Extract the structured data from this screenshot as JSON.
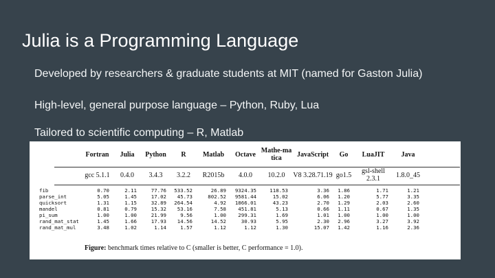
{
  "slide": {
    "title": "Julia is a Programming Language",
    "bullets": [
      "Developed by researchers & graduate students at MIT (named for Gaston Julia)",
      "High-level, general purpose language – Python, Ruby, Lua",
      "Tailored to scientific computing – R, Matlab"
    ]
  },
  "table": {
    "columns": [
      {
        "name": "Fortran",
        "version": "gcc 5.1.1"
      },
      {
        "name": "Julia",
        "version": "0.4.0"
      },
      {
        "name": "Python",
        "version": "3.4.3"
      },
      {
        "name": "R",
        "version": "3.2.2"
      },
      {
        "name": "Matlab",
        "version": "R2015b"
      },
      {
        "name": "Octave",
        "version": "4.0.0"
      },
      {
        "name": "Mathe-matica",
        "version": "10.2.0"
      },
      {
        "name": "JavaScript",
        "version": "V8 3.28.71.19"
      },
      {
        "name": "Go",
        "version": "go1.5"
      },
      {
        "name": "LuaJIT",
        "version": "gsl-shell 2.3.1"
      },
      {
        "name": "Java",
        "version": "1.8.0_45"
      }
    ],
    "rows": [
      {
        "name": "fib",
        "values": [
          "0.70",
          "2.11",
          "77.76",
          "533.52",
          "26.89",
          "9324.35",
          "118.53",
          "3.36",
          "1.86",
          "1.71",
          "1.21"
        ]
      },
      {
        "name": "parse_int",
        "values": [
          "5.05",
          "1.45",
          "17.02",
          "45.73",
          "802.52",
          "9581.44",
          "15.02",
          "6.06",
          "1.20",
          "5.77",
          "3.35"
        ]
      },
      {
        "name": "quicksort",
        "values": [
          "1.31",
          "1.15",
          "32.89",
          "264.54",
          "4.92",
          "1866.01",
          "43.23",
          "2.70",
          "1.29",
          "2.03",
          "2.60"
        ]
      },
      {
        "name": "mandel",
        "values": [
          "0.81",
          "0.79",
          "15.32",
          "53.16",
          "7.58",
          "451.81",
          "5.13",
          "0.66",
          "1.11",
          "0.67",
          "1.35"
        ]
      },
      {
        "name": "pi_sum",
        "values": [
          "1.00",
          "1.00",
          "21.99",
          "9.56",
          "1.00",
          "299.31",
          "1.69",
          "1.01",
          "1.00",
          "1.00",
          "1.00"
        ]
      },
      {
        "name": "rand_mat_stat",
        "values": [
          "1.45",
          "1.66",
          "17.93",
          "14.56",
          "14.52",
          "30.93",
          "5.95",
          "2.30",
          "2.96",
          "3.27",
          "3.92"
        ]
      },
      {
        "name": "rand_mat_mul",
        "values": [
          "3.48",
          "1.02",
          "1.14",
          "1.57",
          "1.12",
          "1.12",
          "1.30",
          "15.07",
          "1.42",
          "1.16",
          "2.36"
        ]
      }
    ],
    "caption_label": "Figure:",
    "caption_text": " benchmark times relative to C (smaller is better, C performance = 1.0)."
  }
}
